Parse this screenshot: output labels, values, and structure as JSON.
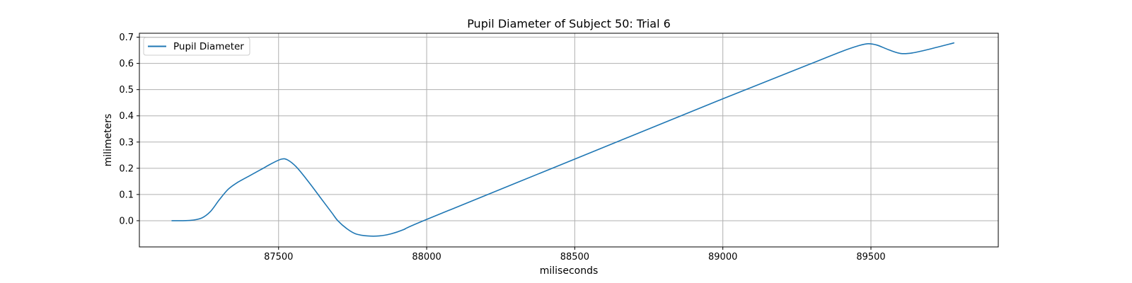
{
  "chart_data": {
    "type": "line",
    "title": "Pupil Diameter of Subject 50: Trial 6",
    "xlabel": "miliseconds",
    "ylabel": "milimeters",
    "xlim": [
      87030,
      89930
    ],
    "ylim": [
      -0.1,
      0.715
    ],
    "xticks": [
      87500,
      88000,
      88500,
      89000,
      89500
    ],
    "yticks": [
      0.0,
      0.1,
      0.2,
      0.3,
      0.4,
      0.5,
      0.6,
      0.7
    ],
    "ytick_labels": [
      "0.0",
      "0.1",
      "0.2",
      "0.3",
      "0.4",
      "0.5",
      "0.6",
      "0.7"
    ],
    "grid": true,
    "legend_position": "top-left",
    "line_color": "#1f77b4",
    "series": [
      {
        "name": "Pupil Diameter",
        "x": [
          87140,
          87200,
          87240,
          87270,
          87300,
          87330,
          87360,
          87400,
          87440,
          87480,
          87510,
          87530,
          87560,
          87600,
          87640,
          87680,
          87700,
          87730,
          87760,
          87800,
          87840,
          87880,
          87920,
          88000,
          88500,
          89000,
          89300,
          89400,
          89460,
          89490,
          89520,
          89560,
          89600,
          89640,
          89700,
          89780
        ],
        "y": [
          0.0,
          0.001,
          0.01,
          0.035,
          0.08,
          0.12,
          0.145,
          0.17,
          0.195,
          0.22,
          0.235,
          0.232,
          0.205,
          0.15,
          0.09,
          0.03,
          0.0,
          -0.03,
          -0.05,
          -0.058,
          -0.058,
          -0.05,
          -0.035,
          0.005,
          0.235,
          0.465,
          0.6,
          0.645,
          0.668,
          0.675,
          0.67,
          0.652,
          0.638,
          0.64,
          0.655,
          0.678
        ]
      }
    ]
  }
}
